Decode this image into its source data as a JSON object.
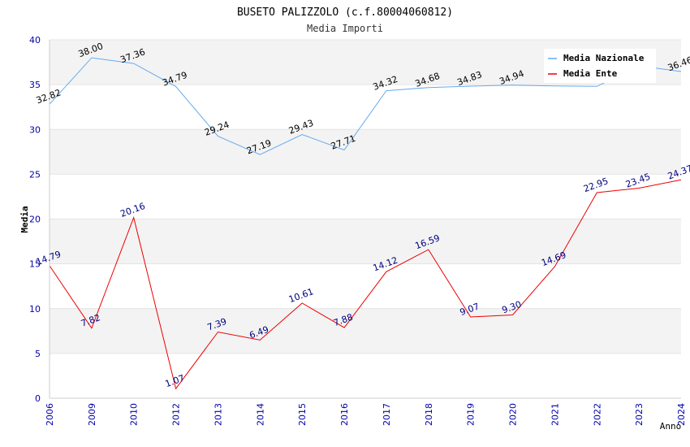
{
  "chart_data": {
    "type": "line",
    "title": "BUSETO PALIZZOLO (c.f.80004060812)",
    "subtitle": "Media Importi",
    "xlabel": "Anno",
    "ylabel": "Media",
    "ylim": [
      0,
      40
    ],
    "yticks": [
      "0",
      "5",
      "10",
      "15",
      "20",
      "25",
      "30",
      "35",
      "40"
    ],
    "categories": [
      "2006",
      "2009",
      "2010",
      "2012",
      "2013",
      "2014",
      "2015",
      "2016",
      "2017",
      "2018",
      "2019",
      "2020",
      "2021",
      "2022",
      "2023",
      "2024"
    ],
    "grid": true,
    "legend_position": "top-right",
    "series": [
      {
        "name": "Media Nazionale",
        "color": "#66aaee",
        "label_color": "#000000",
        "values": [
          32.82,
          38.0,
          37.36,
          34.79,
          29.24,
          27.19,
          29.43,
          27.71,
          34.32,
          34.68,
          34.83,
          34.94,
          34.86,
          34.8,
          37.1,
          36.46
        ],
        "labels": [
          "32.82",
          "38.00",
          "37.36",
          "34.79",
          "29.24",
          "27.19",
          "29.43",
          "27.71",
          "34.32",
          "34.68",
          "34.83",
          "34.94",
          "",
          "",
          "",
          "36.46"
        ]
      },
      {
        "name": "Media Ente",
        "color": "#ee0000",
        "label_color": "#000080",
        "values": [
          14.79,
          7.82,
          20.16,
          1.07,
          7.39,
          6.49,
          10.61,
          7.88,
          14.12,
          16.59,
          9.07,
          9.3,
          14.69,
          22.95,
          23.45,
          24.37
        ],
        "labels": [
          "14.79",
          "7.82",
          "20.16",
          "1.07",
          "7.39",
          "6.49",
          "10.61",
          "7.88",
          "14.12",
          "16.59",
          "9.07",
          "9.30",
          "14.69",
          "22.95",
          "23.45",
          "24.37"
        ]
      }
    ]
  }
}
